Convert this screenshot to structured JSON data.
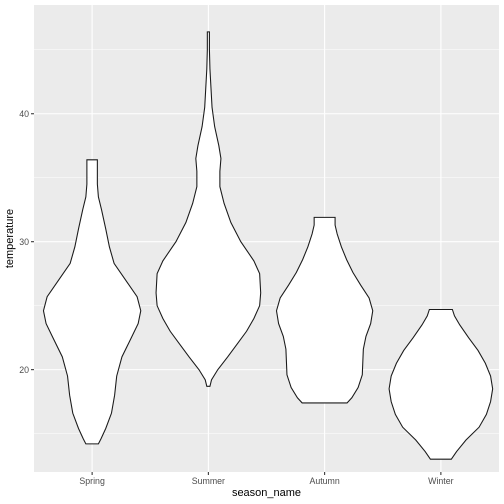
{
  "chart_data": {
    "type": "violin",
    "xlabel": "season_name",
    "ylabel": "temperature",
    "categories": [
      "Spring",
      "Summer",
      "Autumn",
      "Winter"
    ],
    "y_ticks": [
      20,
      30,
      40
    ],
    "ylim": [
      12.0,
      48.5
    ],
    "grid": true,
    "legend": "none",
    "colors": {
      "panel": "#EBEBEB",
      "grid": "#FFFFFF",
      "violin_fill": "#FFFFFF",
      "violin_stroke": "#1A1A1A"
    },
    "violins": [
      {
        "category": "Spring",
        "min": 14.2,
        "max": 36.4,
        "profile": [
          [
            14.2,
            0.12
          ],
          [
            14.6,
            0.17
          ],
          [
            15.4,
            0.26
          ],
          [
            16.6,
            0.37
          ],
          [
            18.0,
            0.43
          ],
          [
            19.5,
            0.47
          ],
          [
            21.0,
            0.57
          ],
          [
            22.5,
            0.75
          ],
          [
            23.6,
            0.88
          ],
          [
            24.6,
            0.93
          ],
          [
            25.7,
            0.86
          ],
          [
            27.0,
            0.64
          ],
          [
            28.3,
            0.42
          ],
          [
            29.6,
            0.33
          ],
          [
            31.0,
            0.26
          ],
          [
            32.5,
            0.18
          ],
          [
            33.5,
            0.12
          ],
          [
            34.5,
            0.1
          ],
          [
            35.5,
            0.1
          ],
          [
            36.4,
            0.1
          ]
        ]
      },
      {
        "category": "Summer",
        "min": 18.7,
        "max": 46.4,
        "profile": [
          [
            18.7,
            0.03
          ],
          [
            19.2,
            0.06
          ],
          [
            20.0,
            0.18
          ],
          [
            21.0,
            0.37
          ],
          [
            22.0,
            0.55
          ],
          [
            23.0,
            0.73
          ],
          [
            24.0,
            0.87
          ],
          [
            25.0,
            0.98
          ],
          [
            26.0,
            1.0
          ],
          [
            27.5,
            0.98
          ],
          [
            28.5,
            0.87
          ],
          [
            30.0,
            0.62
          ],
          [
            31.5,
            0.43
          ],
          [
            33.0,
            0.3
          ],
          [
            34.3,
            0.22
          ],
          [
            35.5,
            0.22
          ],
          [
            36.5,
            0.24
          ],
          [
            37.5,
            0.2
          ],
          [
            39.0,
            0.12
          ],
          [
            40.5,
            0.07
          ],
          [
            42.0,
            0.05
          ],
          [
            43.5,
            0.03
          ],
          [
            45.0,
            0.02
          ],
          [
            46.4,
            0.02
          ]
        ]
      },
      {
        "category": "Autumn",
        "min": 17.4,
        "max": 31.9,
        "profile": [
          [
            17.4,
            0.43
          ],
          [
            17.8,
            0.52
          ],
          [
            18.6,
            0.64
          ],
          [
            19.6,
            0.72
          ],
          [
            20.6,
            0.73
          ],
          [
            21.6,
            0.74
          ],
          [
            22.6,
            0.79
          ],
          [
            23.6,
            0.88
          ],
          [
            24.6,
            0.92
          ],
          [
            25.6,
            0.85
          ],
          [
            26.6,
            0.69
          ],
          [
            27.6,
            0.54
          ],
          [
            28.6,
            0.42
          ],
          [
            29.6,
            0.32
          ],
          [
            30.6,
            0.24
          ],
          [
            31.3,
            0.2
          ],
          [
            31.9,
            0.2
          ]
        ]
      },
      {
        "category": "Winter",
        "min": 13.0,
        "max": 24.7,
        "profile": [
          [
            13.0,
            0.2
          ],
          [
            13.6,
            0.3
          ],
          [
            14.5,
            0.48
          ],
          [
            15.5,
            0.73
          ],
          [
            16.5,
            0.87
          ],
          [
            17.5,
            0.95
          ],
          [
            18.5,
            0.99
          ],
          [
            19.5,
            0.95
          ],
          [
            20.5,
            0.85
          ],
          [
            21.5,
            0.71
          ],
          [
            22.5,
            0.53
          ],
          [
            23.5,
            0.36
          ],
          [
            24.2,
            0.26
          ],
          [
            24.7,
            0.22
          ]
        ]
      }
    ]
  }
}
